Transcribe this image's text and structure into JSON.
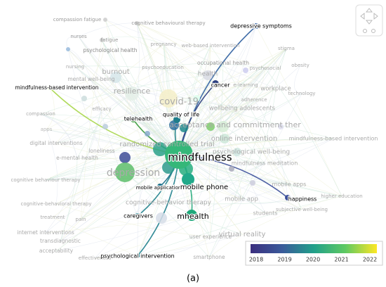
{
  "nodes": [
    {
      "label": "compassion fatigue"
    },
    {
      "label": "cognitive behavioural therapy"
    },
    {
      "label": "depressive symptoms"
    },
    {
      "label": "nurses"
    },
    {
      "label": "fatigue"
    },
    {
      "label": "pregnancy"
    },
    {
      "label": "web-based intervention"
    },
    {
      "label": "stigma"
    },
    {
      "label": "psychological health"
    },
    {
      "label": "nursing"
    },
    {
      "label": "psychoeducation"
    },
    {
      "label": "occupational health"
    },
    {
      "label": "psychosocial"
    },
    {
      "label": "obesity"
    },
    {
      "label": "burnout"
    },
    {
      "label": "mental well-being"
    },
    {
      "label": "health"
    },
    {
      "label": "cancer"
    },
    {
      "label": "e-learning"
    },
    {
      "label": "workplace"
    },
    {
      "label": "technology"
    },
    {
      "label": "mindfulness-based intervention"
    },
    {
      "label": "resilience"
    },
    {
      "label": "covid-19"
    },
    {
      "label": "efficacy"
    },
    {
      "label": "adherence"
    },
    {
      "label": "wellbeing adolescents"
    },
    {
      "label": "compassion"
    },
    {
      "label": "telehealth"
    },
    {
      "label": "apps"
    },
    {
      "label": "quality of life"
    },
    {
      "label": "acceptance and commitment ther"
    },
    {
      "label": "online intervention"
    },
    {
      "label": "mindfulness-based intervention"
    },
    {
      "label": "digital interventions"
    },
    {
      "label": "randomized controlled trial"
    },
    {
      "label": "loneliness"
    },
    {
      "label": "e-mental health"
    },
    {
      "label": "psychological well-being"
    },
    {
      "label": "mindfulness"
    },
    {
      "label": "mindfulness meditation"
    },
    {
      "label": "depression"
    },
    {
      "label": "cognitive behaviour therapy"
    },
    {
      "label": "mobile application"
    },
    {
      "label": "mobile phone"
    },
    {
      "label": "mobile apps"
    },
    {
      "label": "happiness"
    },
    {
      "label": "higher education"
    },
    {
      "label": "mobile app"
    },
    {
      "label": "cognitive-behavioral therapy"
    },
    {
      "label": "cognitive-behavior therapy"
    },
    {
      "label": "subjective well-being"
    },
    {
      "label": "caregivers"
    },
    {
      "label": "mhealth"
    },
    {
      "label": "students"
    },
    {
      "label": "treatment"
    },
    {
      "label": "pain"
    },
    {
      "label": "internet interventions"
    },
    {
      "label": "transdiagnostic"
    },
    {
      "label": "virtual reality"
    },
    {
      "label": "user experience"
    },
    {
      "label": "acceptability"
    },
    {
      "label": "psychological intervention"
    },
    {
      "label": "smartphone"
    },
    {
      "label": "effectiveness"
    }
  ],
  "legend": {
    "ticks": [
      2018,
      2019,
      2020,
      2021,
      2022
    ]
  },
  "caption": "(a)"
}
